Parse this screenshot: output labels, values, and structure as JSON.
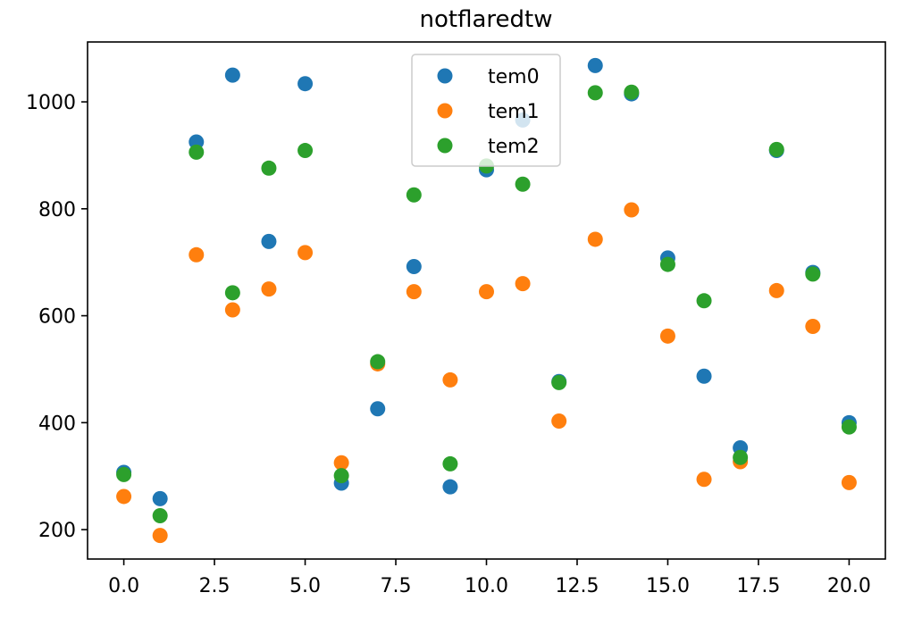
{
  "chart_data": {
    "type": "scatter",
    "title": "notflaredtw",
    "xlabel": "",
    "ylabel": "",
    "xlim": [
      -1.0,
      21.0
    ],
    "ylim": [
      145,
      1112
    ],
    "xticks": [
      0.0,
      2.5,
      5.0,
      7.5,
      10.0,
      12.5,
      15.0,
      17.5,
      20.0
    ],
    "xtick_labels": [
      "0.0",
      "2.5",
      "5.0",
      "7.5",
      "10.0",
      "12.5",
      "15.0",
      "17.5",
      "20.0"
    ],
    "yticks": [
      200,
      400,
      600,
      800,
      1000
    ],
    "ytick_labels": [
      "200",
      "400",
      "600",
      "800",
      "1000"
    ],
    "grid": false,
    "legend_position": "top-center",
    "x": [
      0,
      1,
      2,
      3,
      4,
      5,
      6,
      7,
      8,
      9,
      10,
      11,
      12,
      13,
      14,
      15,
      16,
      17,
      18,
      19,
      20
    ],
    "series": [
      {
        "name": "tem0",
        "color": "#1f77b4",
        "values": [
          307,
          258,
          925,
          1050,
          739,
          1034,
          287,
          426,
          692,
          280,
          873,
          966,
          477,
          1068,
          1015,
          708,
          487,
          353,
          909,
          681,
          400
        ]
      },
      {
        "name": "tem1",
        "color": "#ff7f0e",
        "values": [
          262,
          189,
          714,
          611,
          650,
          718,
          325,
          510,
          645,
          480,
          645,
          660,
          403,
          743,
          798,
          562,
          294,
          327,
          647,
          580,
          288
        ]
      },
      {
        "name": "tem2",
        "color": "#2ca02c",
        "values": [
          303,
          226,
          906,
          643,
          876,
          909,
          301,
          514,
          826,
          323,
          880,
          846,
          475,
          1017,
          1018,
          696,
          628,
          335,
          911,
          678,
          392
        ]
      }
    ]
  }
}
